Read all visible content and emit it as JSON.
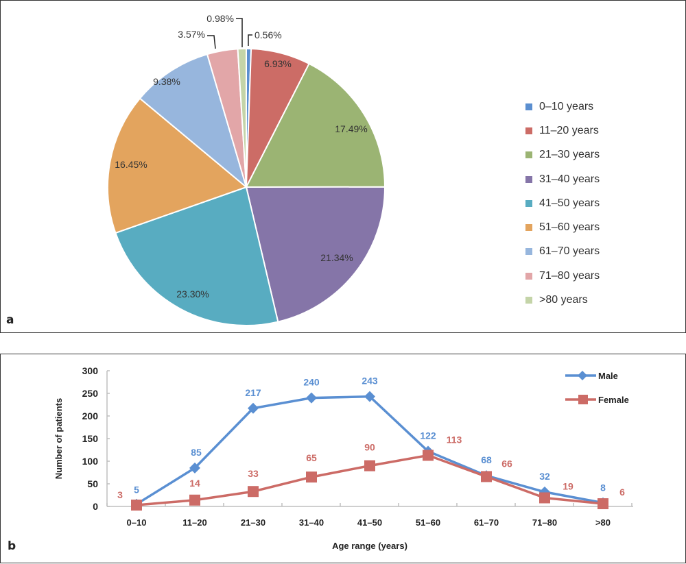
{
  "chart_data": [
    {
      "type": "pie",
      "panel_label": "a",
      "categories": [
        "0–10 years",
        "11–20 years",
        "21–30 years",
        "31–40 years",
        "41–50 years",
        "51–60 years",
        "61–70 years",
        "71–80 years",
        ">80 years"
      ],
      "values": [
        0.56,
        6.93,
        17.49,
        21.34,
        23.3,
        16.45,
        9.38,
        3.57,
        0.98
      ],
      "data_labels": [
        "0.56%",
        "6.93%",
        "17.49%",
        "21.34%",
        "23.30%",
        "16.45%",
        "9.38%",
        "3.57%",
        "0.98%"
      ],
      "colors": [
        "#5b8fd0",
        "#cc6c66",
        "#9bb473",
        "#8575a8",
        "#58acc1",
        "#e3a45e",
        "#97b6dd",
        "#e2a6a8",
        "#c4d4a8"
      ],
      "legend_position": "right"
    },
    {
      "type": "line",
      "panel_label": "b",
      "categories": [
        "0–10",
        "11–20",
        "21–30",
        "31–40",
        "41–50",
        "51–60",
        "61–70",
        "71–80",
        ">80"
      ],
      "series": [
        {
          "name": "Male",
          "values": [
            5,
            85,
            217,
            240,
            243,
            122,
            68,
            32,
            8
          ],
          "color": "#5a8fd2",
          "marker": "diamond"
        },
        {
          "name": "Female",
          "values": [
            3,
            14,
            33,
            65,
            90,
            113,
            66,
            19,
            6
          ],
          "color": "#cc6b66",
          "marker": "square"
        }
      ],
      "xlabel": "Age range (years)",
      "ylabel": "Number of patients",
      "ylim": [
        0,
        300
      ],
      "yticks": [
        "0",
        "50",
        "100",
        "150",
        "200",
        "250",
        "300"
      ],
      "grid": false,
      "legend_position": "top-right"
    }
  ]
}
